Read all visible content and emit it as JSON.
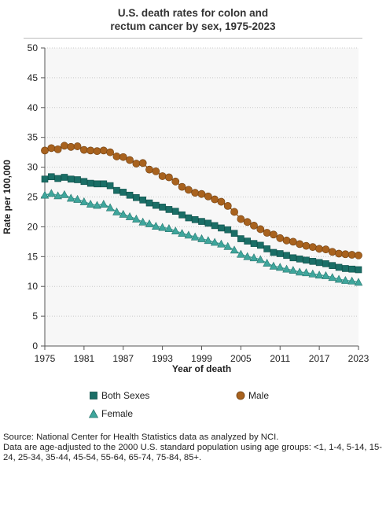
{
  "title_lines": [
    "U.S. death rates for colon and",
    "rectum cancer by sex, 1975-2023"
  ],
  "chart_data": {
    "type": "line",
    "title": "U.S. death rates for colon and rectum cancer by sex, 1975-2023",
    "xlabel": "Year of death",
    "ylabel": "Rate per 100,000",
    "xlim": [
      1975,
      2023
    ],
    "ylim": [
      0,
      50
    ],
    "xticks": [
      1975,
      1981,
      1987,
      1993,
      1999,
      2005,
      2011,
      2017,
      2023
    ],
    "yticks": [
      0,
      5,
      10,
      15,
      20,
      25,
      30,
      35,
      40,
      45,
      50
    ],
    "grid": "horizontal dotted",
    "legend_position": "bottom",
    "x": [
      1975,
      1976,
      1977,
      1978,
      1979,
      1980,
      1981,
      1982,
      1983,
      1984,
      1985,
      1986,
      1987,
      1988,
      1989,
      1990,
      1991,
      1992,
      1993,
      1994,
      1995,
      1996,
      1997,
      1998,
      1999,
      2000,
      2001,
      2002,
      2003,
      2004,
      2005,
      2006,
      2007,
      2008,
      2009,
      2010,
      2011,
      2012,
      2013,
      2014,
      2015,
      2016,
      2017,
      2018,
      2019,
      2020,
      2021,
      2022,
      2023
    ],
    "series": [
      {
        "name": "Both Sexes",
        "color": "#1a6e66",
        "marker": "square",
        "values": [
          28.0,
          28.4,
          28.1,
          28.3,
          28.0,
          27.9,
          27.6,
          27.3,
          27.2,
          27.2,
          26.9,
          26.1,
          25.8,
          25.3,
          24.9,
          24.5,
          24.0,
          23.6,
          23.3,
          22.9,
          22.6,
          22.0,
          21.5,
          21.2,
          20.9,
          20.6,
          20.2,
          19.8,
          19.5,
          18.9,
          18.0,
          17.6,
          17.2,
          16.9,
          16.3,
          15.7,
          15.5,
          15.2,
          14.8,
          14.6,
          14.4,
          14.2,
          14.0,
          13.8,
          13.5,
          13.2,
          13.0,
          12.9,
          12.8
        ]
      },
      {
        "name": "Male",
        "color": "#a8621e",
        "marker": "circle",
        "values": [
          32.8,
          33.2,
          33.0,
          33.6,
          33.4,
          33.5,
          32.9,
          32.8,
          32.7,
          32.8,
          32.5,
          31.8,
          31.7,
          31.2,
          30.6,
          30.7,
          29.6,
          29.3,
          28.5,
          28.3,
          27.6,
          26.7,
          26.2,
          25.7,
          25.5,
          25.1,
          24.6,
          24.2,
          23.5,
          22.5,
          21.3,
          20.8,
          20.2,
          19.6,
          19.0,
          18.7,
          18.1,
          17.7,
          17.5,
          17.1,
          16.8,
          16.6,
          16.3,
          16.2,
          15.8,
          15.5,
          15.4,
          15.3,
          15.2
        ]
      },
      {
        "name": "Female",
        "color": "#3ea69c",
        "marker": "triangle",
        "values": [
          25.3,
          25.6,
          25.2,
          25.4,
          24.8,
          24.6,
          24.2,
          23.8,
          23.6,
          23.8,
          23.2,
          22.5,
          22.1,
          21.7,
          21.3,
          20.8,
          20.5,
          20.1,
          19.9,
          19.7,
          19.3,
          18.9,
          18.6,
          18.3,
          18.0,
          17.7,
          17.4,
          17.1,
          16.7,
          16.1,
          15.4,
          15.0,
          14.8,
          14.5,
          13.9,
          13.4,
          13.2,
          12.9,
          12.7,
          12.4,
          12.3,
          12.1,
          11.9,
          11.8,
          11.5,
          11.2,
          11.0,
          10.9,
          10.7
        ]
      }
    ]
  },
  "legend": [
    {
      "name": "Both Sexes"
    },
    {
      "name": "Male"
    },
    {
      "name": "Female"
    }
  ],
  "source_lines": [
    "Source: National Center for Health Statistics data as analyzed by NCI.",
    "Data are age-adjusted to the 2000 U.S. standard population using age groups: <1, 1-4, 5-14, 15-24, 25-34, 35-44, 45-54, 55-64, 65-74, 75-84, 85+."
  ]
}
